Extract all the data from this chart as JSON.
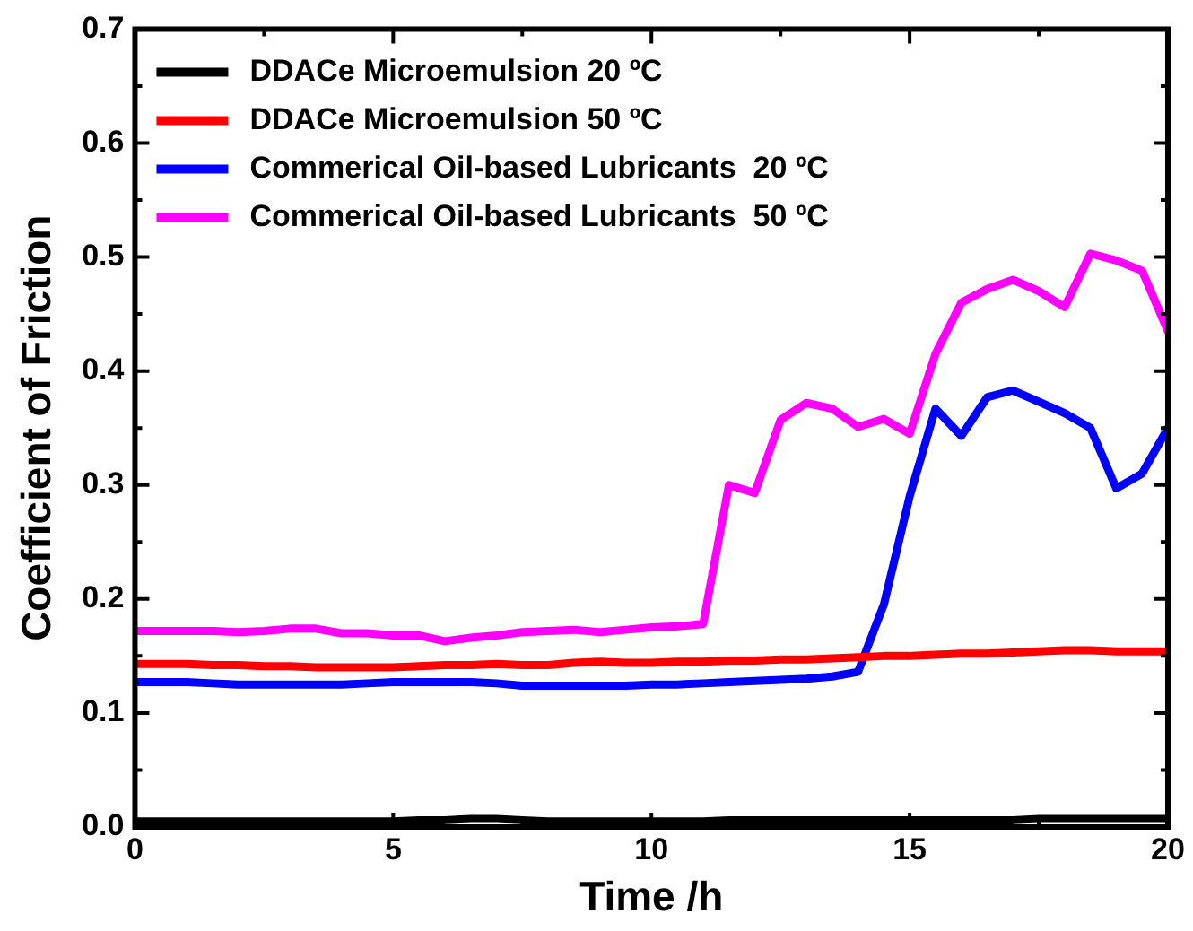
{
  "chart_data": {
    "type": "line",
    "xlabel": "Time /h",
    "ylabel": "Coefficient of Friction",
    "x": [
      0,
      0.5,
      1,
      1.5,
      2,
      2.5,
      3,
      3.5,
      4,
      4.5,
      5,
      5.5,
      6,
      6.5,
      7,
      7.5,
      8,
      8.5,
      9,
      9.5,
      10,
      10.5,
      11,
      11.5,
      12,
      12.5,
      13,
      13.5,
      14,
      14.5,
      15,
      15.5,
      16,
      16.5,
      17,
      17.5,
      18,
      18.5,
      19,
      19.5,
      20
    ],
    "series": [
      {
        "name": "DDACe Microemulsion 20 ºC",
        "color": "#000000",
        "values": [
          0.005,
          0.005,
          0.005,
          0.005,
          0.005,
          0.005,
          0.005,
          0.005,
          0.005,
          0.005,
          0.005,
          0.006,
          0.006,
          0.007,
          0.007,
          0.006,
          0.005,
          0.005,
          0.005,
          0.005,
          0.005,
          0.005,
          0.005,
          0.006,
          0.006,
          0.006,
          0.006,
          0.006,
          0.006,
          0.006,
          0.006,
          0.006,
          0.006,
          0.006,
          0.006,
          0.007,
          0.007,
          0.007,
          0.007,
          0.007,
          0.007
        ]
      },
      {
        "name": "DDACe Microemulsion 50 ºC",
        "color": "#ff0000",
        "values": [
          0.143,
          0.143,
          0.143,
          0.142,
          0.142,
          0.141,
          0.141,
          0.14,
          0.14,
          0.14,
          0.14,
          0.141,
          0.142,
          0.142,
          0.143,
          0.142,
          0.142,
          0.144,
          0.145,
          0.144,
          0.144,
          0.145,
          0.145,
          0.146,
          0.146,
          0.147,
          0.147,
          0.148,
          0.149,
          0.15,
          0.15,
          0.151,
          0.152,
          0.152,
          0.153,
          0.154,
          0.155,
          0.155,
          0.154,
          0.154,
          0.154
        ]
      },
      {
        "name": "Commerical Oil-based Lubricants  20 ºC",
        "color": "#0000ff",
        "values": [
          0.127,
          0.127,
          0.127,
          0.126,
          0.125,
          0.125,
          0.125,
          0.125,
          0.125,
          0.126,
          0.127,
          0.127,
          0.127,
          0.127,
          0.126,
          0.124,
          0.124,
          0.124,
          0.124,
          0.124,
          0.125,
          0.125,
          0.126,
          0.127,
          0.128,
          0.129,
          0.13,
          0.132,
          0.136,
          0.195,
          0.29,
          0.367,
          0.343,
          0.377,
          0.383,
          0.373,
          0.363,
          0.35,
          0.297,
          0.31,
          0.35
        ]
      },
      {
        "name": "Commerical Oil-based Lubricants  50 ºC",
        "color": "#ff00ff",
        "values": [
          0.172,
          0.172,
          0.172,
          0.172,
          0.171,
          0.172,
          0.174,
          0.174,
          0.17,
          0.17,
          0.168,
          0.168,
          0.163,
          0.166,
          0.168,
          0.171,
          0.172,
          0.173,
          0.171,
          0.173,
          0.175,
          0.176,
          0.178,
          0.3,
          0.293,
          0.357,
          0.372,
          0.367,
          0.351,
          0.358,
          0.345,
          0.415,
          0.46,
          0.472,
          0.48,
          0.47,
          0.456,
          0.503,
          0.497,
          0.488,
          0.435
        ]
      }
    ],
    "xlim": [
      0,
      20
    ],
    "xticks": [
      0,
      5,
      10,
      15,
      20
    ],
    "ylim": [
      0,
      0.7
    ],
    "yticks": [
      {
        "value": 0,
        "label": "0.0"
      },
      {
        "value": 0.1,
        "label": "0.1"
      },
      {
        "value": 0.2,
        "label": "0.2"
      },
      {
        "value": 0.3,
        "label": "0.3"
      },
      {
        "value": 0.4,
        "label": "0.4"
      },
      {
        "value": 0.5,
        "label": "0.5"
      },
      {
        "value": 0.6,
        "label": "0.6"
      },
      {
        "value": 0.7,
        "label": "0.7"
      }
    ],
    "grid": false,
    "legend": "top left",
    "marker": "none",
    "line_style": "solid"
  }
}
